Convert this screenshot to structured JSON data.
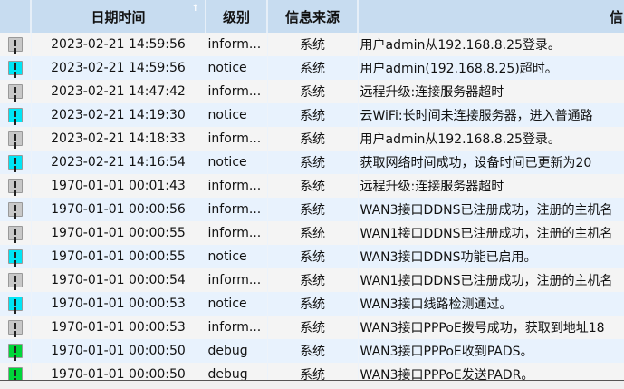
{
  "colors": {
    "inform": "#c8c8c8",
    "notice": "#00e5f5",
    "debug": "#00d63a",
    "header": "#c7dcf0"
  },
  "columns": [
    "",
    "日期时间",
    "级别",
    "信息来源",
    "信"
  ],
  "sort_indicator": "↑",
  "rows": [
    {
      "icon": "inform",
      "time": "2023-02-21 14:59:56",
      "level": "inform...",
      "source": "系统",
      "message": "用户admin从192.168.8.25登录。"
    },
    {
      "icon": "notice",
      "time": "2023-02-21 14:59:56",
      "level": "notice",
      "source": "系统",
      "message": "用户admin(192.168.8.25)超时。"
    },
    {
      "icon": "inform",
      "time": "2023-02-21 14:47:42",
      "level": "inform...",
      "source": "系统",
      "message": "远程升级:连接服务器超时"
    },
    {
      "icon": "notice",
      "time": "2023-02-21 14:19:30",
      "level": "notice",
      "source": "系统",
      "message": "云WiFi:长时间未连接服务器，进入普通路"
    },
    {
      "icon": "inform",
      "time": "2023-02-21 14:18:33",
      "level": "inform...",
      "source": "系统",
      "message": "用户admin从192.168.8.25登录。"
    },
    {
      "icon": "notice",
      "time": "2023-02-21 14:16:54",
      "level": "notice",
      "source": "系统",
      "message": "获取网络时间成功，设备时间已更新为20"
    },
    {
      "icon": "inform",
      "time": "1970-01-01 00:01:43",
      "level": "inform...",
      "source": "系统",
      "message": "远程升级:连接服务器超时"
    },
    {
      "icon": "inform",
      "time": "1970-01-01 00:00:56",
      "level": "inform...",
      "source": "系统",
      "message": "WAN3接口DDNS已注册成功，注册的主机名"
    },
    {
      "icon": "inform",
      "time": "1970-01-01 00:00:55",
      "level": "inform...",
      "source": "系统",
      "message": "WAN1接口DDNS已注册成功，注册的主机名"
    },
    {
      "icon": "notice",
      "time": "1970-01-01 00:00:55",
      "level": "notice",
      "source": "系统",
      "message": "WAN3接口DDNS功能已启用。"
    },
    {
      "icon": "inform",
      "time": "1970-01-01 00:00:54",
      "level": "inform...",
      "source": "系统",
      "message": "WAN1接口DDNS已注册成功，注册的主机名"
    },
    {
      "icon": "notice",
      "time": "1970-01-01 00:00:53",
      "level": "notice",
      "source": "系统",
      "message": "WAN3接口线路检测通过。"
    },
    {
      "icon": "inform",
      "time": "1970-01-01 00:00:53",
      "level": "inform...",
      "source": "系统",
      "message": "WAN3接口PPPoE拨号成功，获取到地址18"
    },
    {
      "icon": "debug",
      "time": "1970-01-01 00:00:50",
      "level": "debug",
      "source": "系统",
      "message": "WAN3接口PPPoE收到PADS。"
    },
    {
      "icon": "debug",
      "time": "1970-01-01 00:00:50",
      "level": "debug",
      "source": "系统",
      "message": "WAN3接口PPPoE发送PADR。"
    }
  ]
}
